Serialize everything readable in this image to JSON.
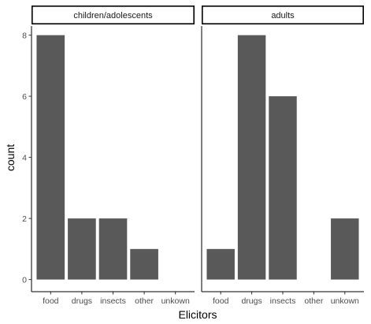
{
  "chart_data": {
    "type": "bar",
    "xlabel": "Elicitors",
    "ylabel": "count",
    "ylim": [
      0,
      8.4
    ],
    "yticks": [
      0,
      2,
      4,
      6,
      8
    ],
    "categories": [
      "food",
      "drugs",
      "insects",
      "other",
      "unkown"
    ],
    "bar_color": "#595959",
    "facets": [
      {
        "label": "children/adolescents",
        "values": [
          8,
          2,
          2,
          1,
          0
        ]
      },
      {
        "label": "adults",
        "values": [
          1,
          8,
          6,
          0,
          2
        ]
      }
    ]
  }
}
